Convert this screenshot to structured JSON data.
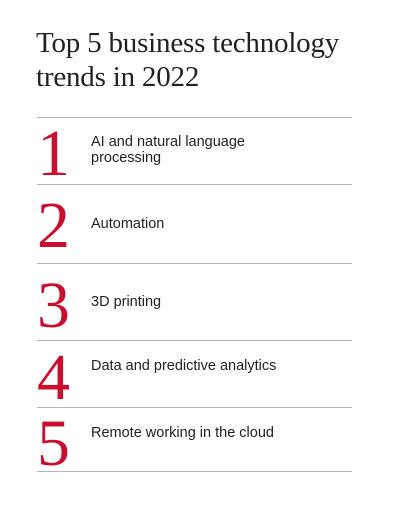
{
  "title": "Top 5 business technology trends in 2022",
  "accent_color": "#c8102e",
  "trends": [
    {
      "rank": "1",
      "label": "AI and natural language processing"
    },
    {
      "rank": "2",
      "label": "Automation"
    },
    {
      "rank": "3",
      "label": "3D printing"
    },
    {
      "rank": "4",
      "label": "Data and predictive analytics"
    },
    {
      "rank": "5",
      "label": "Remote working in the cloud"
    }
  ]
}
